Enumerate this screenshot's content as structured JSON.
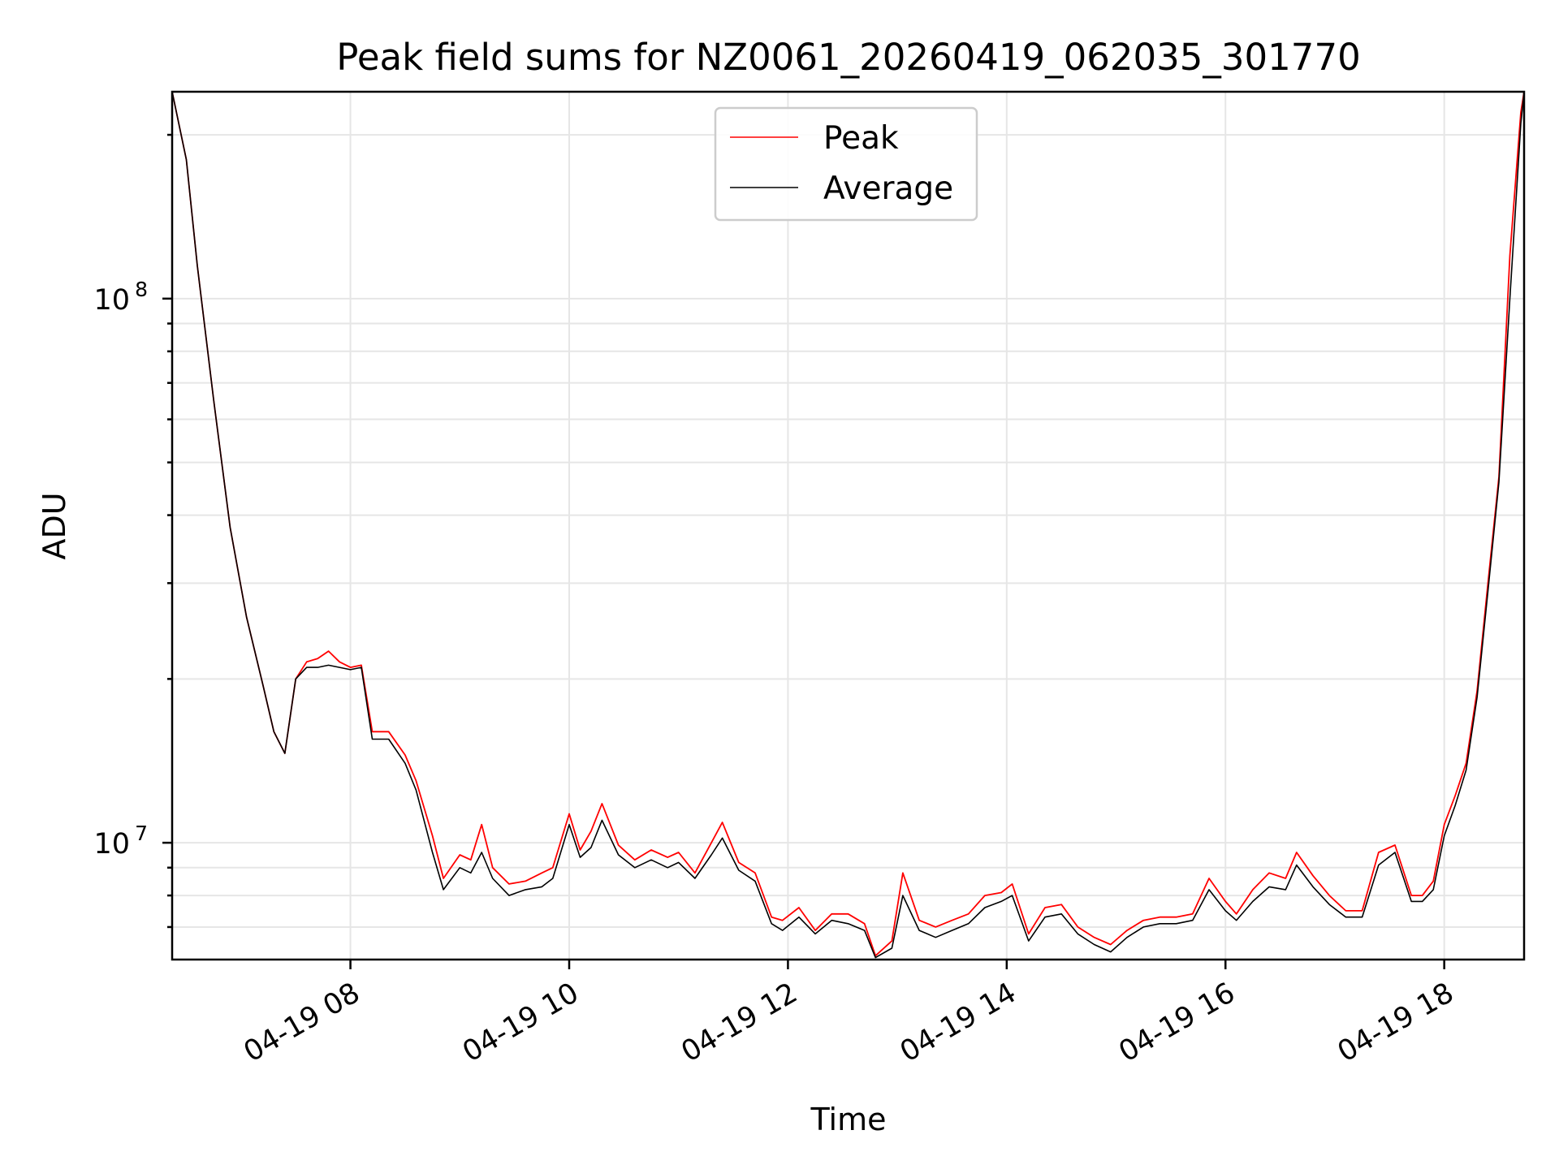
{
  "chart_data": {
    "type": "line",
    "title": "Peak field sums for NZ0061_20260419_062035_301770",
    "xlabel": "Time",
    "ylabel": "ADU",
    "yscale": "log",
    "xlim": [
      6.37,
      18.73
    ],
    "ylim": [
      6100000,
      240000000
    ],
    "x_ticks": [
      {
        "value": 8,
        "label": "04-19 08"
      },
      {
        "value": 10,
        "label": "04-19 10"
      },
      {
        "value": 12,
        "label": "04-19 12"
      },
      {
        "value": 14,
        "label": "04-19 14"
      },
      {
        "value": 16,
        "label": "04-19 16"
      },
      {
        "value": 18,
        "label": "04-19 18"
      }
    ],
    "y_ticks": [
      {
        "value": 10000000,
        "base": "10",
        "exp": "7"
      },
      {
        "value": 100000000,
        "base": "10",
        "exp": "8"
      }
    ],
    "grid": true,
    "legend_position": "upper-center",
    "series": [
      {
        "name": "Peak",
        "color": "#ff0000",
        "x": [
          6.37,
          6.5,
          6.6,
          6.75,
          6.9,
          7.05,
          7.2,
          7.3,
          7.4,
          7.5,
          7.6,
          7.7,
          7.8,
          7.9,
          8.0,
          8.1,
          8.2,
          8.35,
          8.5,
          8.6,
          8.75,
          8.85,
          9.0,
          9.1,
          9.2,
          9.3,
          9.45,
          9.6,
          9.75,
          9.85,
          10.0,
          10.1,
          10.2,
          10.3,
          10.45,
          10.6,
          10.75,
          10.9,
          11.0,
          11.15,
          11.3,
          11.4,
          11.55,
          11.7,
          11.85,
          11.95,
          12.1,
          12.25,
          12.4,
          12.55,
          12.7,
          12.8,
          12.95,
          13.05,
          13.2,
          13.35,
          13.5,
          13.65,
          13.8,
          13.95,
          14.05,
          14.2,
          14.35,
          14.5,
          14.65,
          14.8,
          14.95,
          15.1,
          15.25,
          15.4,
          15.55,
          15.7,
          15.85,
          16.0,
          16.1,
          16.25,
          16.4,
          16.55,
          16.65,
          16.8,
          16.95,
          17.1,
          17.25,
          17.4,
          17.55,
          17.7,
          17.8,
          17.9,
          18.0,
          18.1,
          18.2,
          18.3,
          18.4,
          18.5,
          18.6,
          18.7,
          18.73
        ],
        "y": [
          240000000,
          180000000,
          115000000,
          65000000,
          38000000,
          26000000,
          19500000,
          16000000,
          14600000,
          20000000,
          21500000,
          21800000,
          22500000,
          21500000,
          21000000,
          21200000,
          16000000,
          16000000,
          14500000,
          13000000,
          10300000,
          8600000,
          9500000,
          9300000,
          10800000,
          9000000,
          8400000,
          8500000,
          8800000,
          9000000,
          11300000,
          9700000,
          10500000,
          11800000,
          9900000,
          9300000,
          9700000,
          9400000,
          9600000,
          8800000,
          10000000,
          10900000,
          9200000,
          8800000,
          7300000,
          7200000,
          7600000,
          6900000,
          7400000,
          7400000,
          7100000,
          6200000,
          6600000,
          8800000,
          7200000,
          7000000,
          7200000,
          7400000,
          8000000,
          8100000,
          8400000,
          6800000,
          7600000,
          7700000,
          7000000,
          6700000,
          6500000,
          6900000,
          7200000,
          7300000,
          7300000,
          7400000,
          8600000,
          7800000,
          7400000,
          8200000,
          8800000,
          8600000,
          9600000,
          8700000,
          8000000,
          7500000,
          7500000,
          9600000,
          9900000,
          8000000,
          8000000,
          8500000,
          10800000,
          12200000,
          14000000,
          19000000,
          30000000,
          47000000,
          120000000,
          220000000,
          240000000
        ]
      },
      {
        "name": "Average",
        "color": "#000000",
        "x": [
          6.37,
          6.5,
          6.6,
          6.75,
          6.9,
          7.05,
          7.2,
          7.3,
          7.4,
          7.5,
          7.6,
          7.7,
          7.8,
          7.9,
          8.0,
          8.1,
          8.2,
          8.35,
          8.5,
          8.6,
          8.75,
          8.85,
          9.0,
          9.1,
          9.2,
          9.3,
          9.45,
          9.6,
          9.75,
          9.85,
          10.0,
          10.1,
          10.2,
          10.3,
          10.45,
          10.6,
          10.75,
          10.9,
          11.0,
          11.15,
          11.3,
          11.4,
          11.55,
          11.7,
          11.85,
          11.95,
          12.1,
          12.25,
          12.4,
          12.55,
          12.7,
          12.8,
          12.95,
          13.05,
          13.2,
          13.35,
          13.5,
          13.65,
          13.8,
          13.95,
          14.05,
          14.2,
          14.35,
          14.5,
          14.65,
          14.8,
          14.95,
          15.1,
          15.25,
          15.4,
          15.55,
          15.7,
          15.85,
          16.0,
          16.1,
          16.25,
          16.4,
          16.55,
          16.65,
          16.8,
          16.95,
          17.1,
          17.25,
          17.4,
          17.55,
          17.7,
          17.8,
          17.9,
          18.0,
          18.1,
          18.2,
          18.3,
          18.4,
          18.5,
          18.6,
          18.7,
          18.73
        ],
        "y": [
          240000000,
          180000000,
          115000000,
          65000000,
          38000000,
          26000000,
          19500000,
          16000000,
          14600000,
          20000000,
          21000000,
          21000000,
          21200000,
          21000000,
          20800000,
          21000000,
          15500000,
          15500000,
          14000000,
          12500000,
          9600000,
          8200000,
          9000000,
          8800000,
          9600000,
          8600000,
          8000000,
          8200000,
          8300000,
          8600000,
          10800000,
          9400000,
          9800000,
          11000000,
          9500000,
          9000000,
          9300000,
          9000000,
          9200000,
          8600000,
          9500000,
          10200000,
          8900000,
          8500000,
          7100000,
          6900000,
          7300000,
          6800000,
          7200000,
          7100000,
          6900000,
          6150000,
          6400000,
          8000000,
          6900000,
          6700000,
          6900000,
          7100000,
          7600000,
          7800000,
          8000000,
          6600000,
          7300000,
          7400000,
          6800000,
          6500000,
          6300000,
          6700000,
          7000000,
          7100000,
          7100000,
          7200000,
          8200000,
          7500000,
          7200000,
          7800000,
          8300000,
          8200000,
          9100000,
          8300000,
          7700000,
          7300000,
          7300000,
          9100000,
          9600000,
          7800000,
          7800000,
          8200000,
          10300000,
          11700000,
          13600000,
          18500000,
          29000000,
          46000000,
          100000000,
          210000000,
          240000000
        ]
      }
    ]
  }
}
